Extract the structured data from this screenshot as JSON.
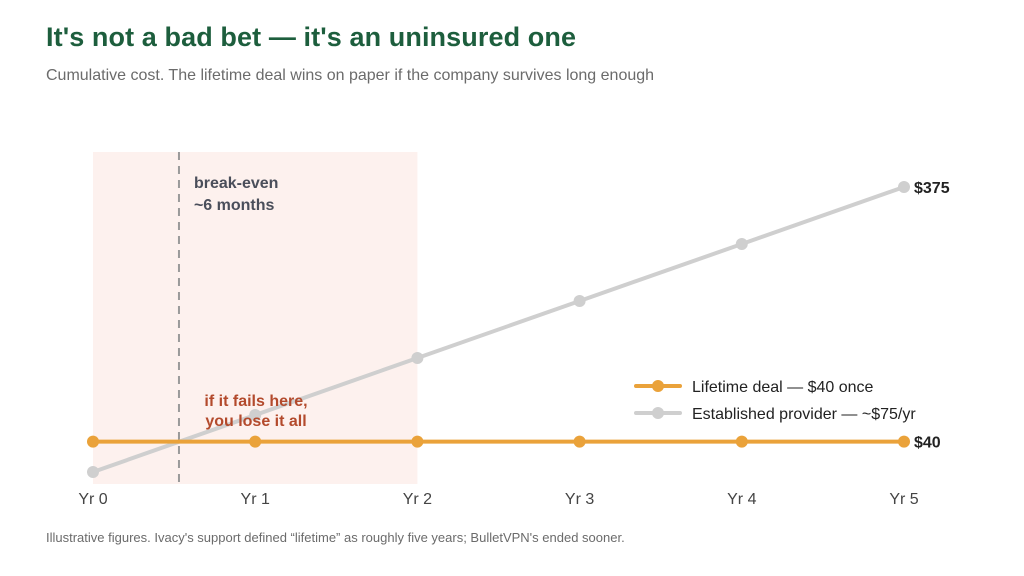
{
  "header": {
    "title": "It's not a bad bet — it's an uninsured one",
    "subtitle": "Cumulative cost. The lifetime deal wins on paper if the company survives long enough"
  },
  "footnote": "Illustrative figures. Ivacy's support defined “lifetime” as roughly five years; BulletVPN's ended sooner.",
  "chart_data": {
    "type": "line",
    "title": "",
    "xlabel": "",
    "ylabel": "",
    "categories": [
      "Yr 0",
      "Yr 1",
      "Yr 2",
      "Yr 3",
      "Yr 4",
      "Yr 5"
    ],
    "x": [
      0,
      1,
      2,
      3,
      4,
      5
    ],
    "ylim": [
      0,
      400
    ],
    "grid": false,
    "legend_position": "right",
    "series": [
      {
        "name": "Lifetime deal — $40 once",
        "values": [
          40,
          40,
          40,
          40,
          40,
          40
        ],
        "color": "#eaa23a",
        "end_label": "$40"
      },
      {
        "name": "Established provider — ~$75/yr",
        "values": [
          0,
          75,
          150,
          225,
          300,
          375
        ],
        "color": "#cfcfcf",
        "end_label": "$375"
      }
    ],
    "annotations": {
      "break_even": {
        "x": 0.53,
        "lines": [
          "break-even",
          "~6 months"
        ]
      },
      "risk_zone": {
        "x_range": [
          -0.1,
          2
        ],
        "color": "#fdf1ee",
        "lines": [
          "if it fails here,",
          "you lose it all"
        ],
        "color_text": "#b34a2c"
      }
    }
  }
}
